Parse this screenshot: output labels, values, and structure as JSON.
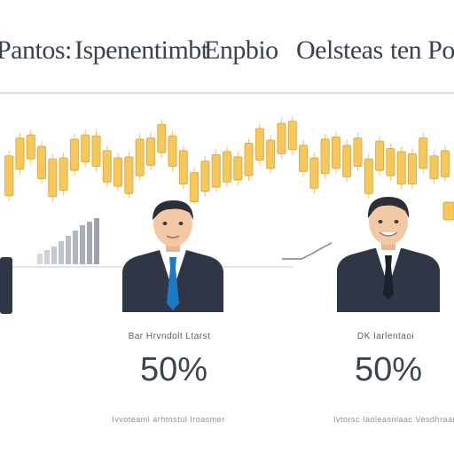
{
  "title": {
    "part1": "Pantos:",
    "part2": "Ispenentimbt",
    "part3": "Enpbio",
    "part4": "Oelsteas",
    "part5": "ten Po"
  },
  "left_panel": {
    "caption": "Bar Hrvndolt Ltarst",
    "value": "50%",
    "footnote": "Ivvoteaml arhtnstul Iroasmer"
  },
  "right_panel": {
    "caption": "DK Iarlentaoi",
    "value": "50%",
    "footnote": "Ivtorsc Iaoleasnlaac Vesdhraan"
  },
  "colors": {
    "candle": "#f5c85c",
    "candle_edge": "#e8a93a",
    "suit": "#2f3746",
    "tie_blue": "#1f7ac6",
    "tie_dark": "#1c222c",
    "skin": "#f2c9a4",
    "hair": "#2a2f38"
  },
  "chart_data": {
    "type": "bar",
    "title": "",
    "series": [
      {
        "values": [
          [
            0.08,
            0.46
          ],
          [
            0.33,
            0.63
          ],
          [
            0.43,
            0.66
          ],
          [
            0.24,
            0.55
          ],
          [
            0.07,
            0.43
          ],
          [
            0.13,
            0.44
          ],
          [
            0.32,
            0.62
          ],
          [
            0.4,
            0.66
          ],
          [
            0.36,
            0.65
          ],
          [
            0.21,
            0.51
          ],
          [
            0.17,
            0.44
          ],
          [
            0.1,
            0.45
          ],
          [
            0.27,
            0.62
          ],
          [
            0.37,
            0.63
          ],
          [
            0.49,
            0.76
          ],
          [
            0.36,
            0.65
          ],
          [
            0.19,
            0.51
          ],
          [
            0.02,
            0.3
          ],
          [
            0.12,
            0.41
          ],
          [
            0.16,
            0.47
          ],
          [
            0.21,
            0.5
          ],
          [
            0.23,
            0.45
          ],
          [
            0.27,
            0.58
          ],
          [
            0.42,
            0.72
          ],
          [
            0.34,
            0.61
          ],
          [
            0.48,
            0.77
          ],
          [
            0.52,
            0.79
          ],
          [
            0.31,
            0.56
          ],
          [
            0.15,
            0.44
          ],
          [
            0.29,
            0.62
          ],
          [
            0.34,
            0.64
          ],
          [
            0.26,
            0.56
          ],
          [
            0.36,
            0.63
          ],
          [
            0.1,
            0.43
          ],
          [
            0.32,
            0.6
          ],
          [
            0.27,
            0.53
          ],
          [
            0.19,
            0.5
          ],
          [
            0.19,
            0.48
          ],
          [
            0.34,
            0.63
          ],
          [
            0.24,
            0.46
          ],
          [
            0.26,
            0.51
          ]
        ]
      }
    ],
    "ylim": [
      0,
      1
    ],
    "grid": false,
    "legend": "none"
  }
}
